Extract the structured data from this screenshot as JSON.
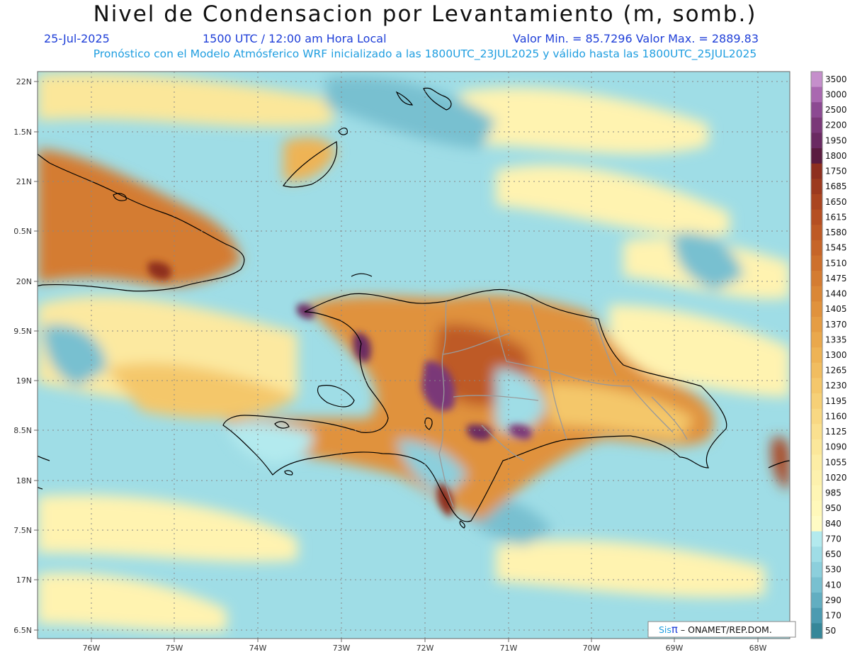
{
  "title": "Nivel de Condensacion por Levantamiento (m, somb.)",
  "header": {
    "date": "25-Jul-2025",
    "time": "1500 UTC / 12:00 am Hora Local",
    "range": "Valor Min. = 85.7296   Valor Max. = 2889.83",
    "forecast": "Pronóstico con el Modelo Atmósferico WRF inicializado a las 1800UTC_23JUL2025 y válido hasta las  1800UTC_25JUL2025"
  },
  "map": {
    "lat_labels": [
      "22N",
      "1.5N",
      "21N",
      "0.5N",
      "20N",
      "9.5N",
      "19N",
      "8.5N",
      "18N",
      "7.5N",
      "17N",
      "6.5N"
    ],
    "lon_labels": [
      "76W",
      "75W",
      "74W",
      "73W",
      "72W",
      "71W",
      "70W",
      "69W",
      "68W"
    ],
    "credit_prefix": "Sis",
    "credit_symbol": "π",
    "credit_suffix": " – ONAMET/REP.DOM."
  },
  "colorbar": {
    "levels": [
      {
        "label": "3500",
        "color": "#c58fcb"
      },
      {
        "label": "3000",
        "color": "#a968b0"
      },
      {
        "label": "2500",
        "color": "#8c4a92"
      },
      {
        "label": "2200",
        "color": "#7a3878"
      },
      {
        "label": "1950",
        "color": "#6a2a62"
      },
      {
        "label": "1800",
        "color": "#5a1c40"
      },
      {
        "label": "1750",
        "color": "#8e2f1f"
      },
      {
        "label": "1685",
        "color": "#9c3a1f"
      },
      {
        "label": "1650",
        "color": "#aa4520"
      },
      {
        "label": "1615",
        "color": "#b54f22"
      },
      {
        "label": "1580",
        "color": "#be5a25"
      },
      {
        "label": "1545",
        "color": "#c66529"
      },
      {
        "label": "1510",
        "color": "#cd702d"
      },
      {
        "label": "1475",
        "color": "#d47c32"
      },
      {
        "label": "1440",
        "color": "#da8737"
      },
      {
        "label": "1405",
        "color": "#e0923d"
      },
      {
        "label": "1370",
        "color": "#e59d44"
      },
      {
        "label": "1335",
        "color": "#eaa84c"
      },
      {
        "label": "1300",
        "color": "#eeb355"
      },
      {
        "label": "1265",
        "color": "#f1bd60"
      },
      {
        "label": "1230",
        "color": "#f4c76b"
      },
      {
        "label": "1195",
        "color": "#f6d077"
      },
      {
        "label": "1160",
        "color": "#f8d883"
      },
      {
        "label": "1125",
        "color": "#fae08f"
      },
      {
        "label": "1090",
        "color": "#fbe79a"
      },
      {
        "label": "1055",
        "color": "#fcedA5"
      },
      {
        "label": "1020",
        "color": "#fdf1ad"
      },
      {
        "label": "985",
        "color": "#fef5b4"
      },
      {
        "label": "950",
        "color": "#fff8ba"
      },
      {
        "label": "840",
        "color": "#fffbc4"
      },
      {
        "label": "770",
        "color": "#b3eaee"
      },
      {
        "label": "650",
        "color": "#9fdde6"
      },
      {
        "label": "530",
        "color": "#8ccfdc"
      },
      {
        "label": "410",
        "color": "#78c0d0"
      },
      {
        "label": "290",
        "color": "#62aec1"
      },
      {
        "label": "170",
        "color": "#4c9bb1"
      },
      {
        "label": "50",
        "color": "#368799"
      }
    ]
  },
  "colors": {
    "sea": "#9ad8e3",
    "land_outline": "#000000",
    "province_lines": "#9a9a9a",
    "title_blue": "#1f3fd8",
    "forecast_blue": "#1f9ee0"
  }
}
